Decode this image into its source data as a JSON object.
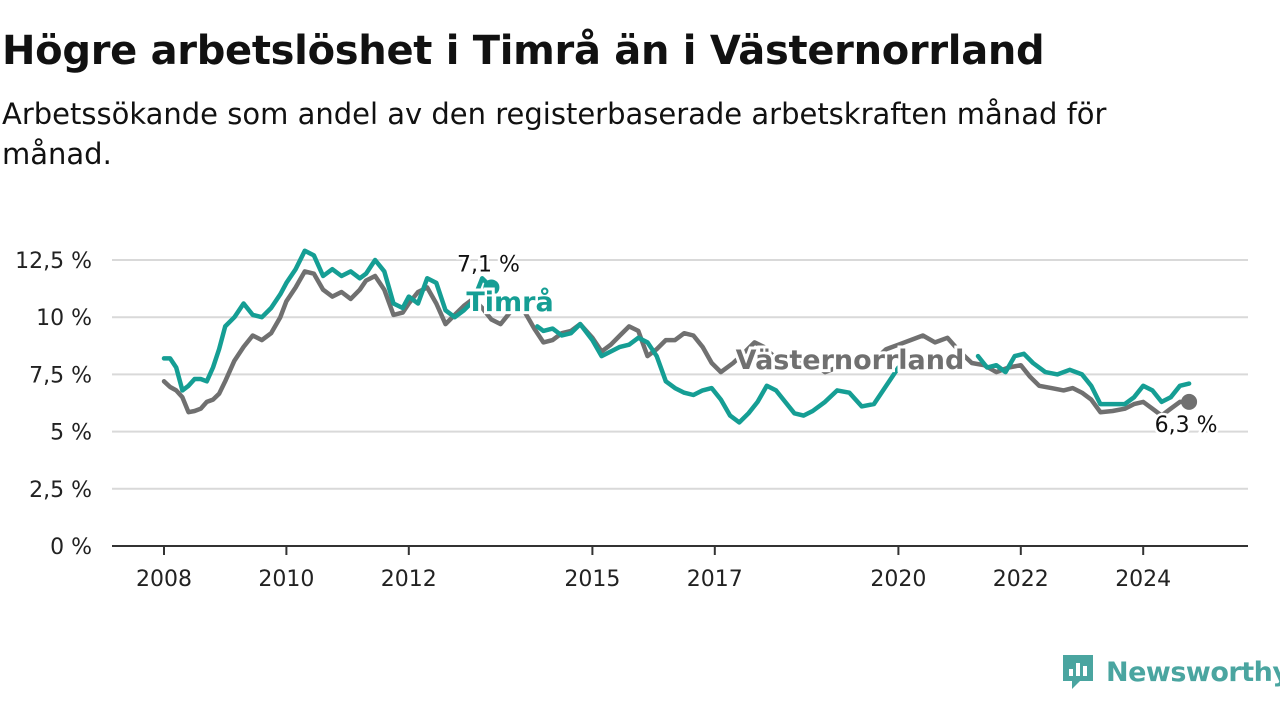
{
  "title": "Högre arbetslöshet i Timrå än i Västernorrland",
  "subtitle": "Arbetssökande som andel av den registerbaserade arbetskraften månad för månad.",
  "brand": {
    "name": "Newsworthy",
    "icon": "newsworthy-logo-icon",
    "color": "#4aa5a0"
  },
  "chart_data": {
    "type": "line",
    "title": "Högre arbetslöshet i Timrå än i Västernorrland",
    "subtitle": "Arbetssökande som andel av den registerbaserade arbetskraften månad för månad.",
    "xlabel": "",
    "ylabel": "",
    "x_range": [
      2008,
      2025.1
    ],
    "ylim": [
      0,
      12.5
    ],
    "y_ticks": [
      0,
      2.5,
      5,
      7.5,
      10,
      12.5
    ],
    "y_tick_labels": [
      "0 %",
      "2,5 %",
      "5 %",
      "7,5 %",
      "10 %",
      "12,5 %"
    ],
    "x_ticks": [
      2008,
      2010,
      2012,
      2015,
      2017,
      2020,
      2022,
      2024
    ],
    "x_tick_labels": [
      "2008",
      "2010",
      "2012",
      "2015",
      "2017",
      "2020",
      "2022",
      "2024"
    ],
    "grid": true,
    "series": [
      {
        "name": "Västernorrland",
        "color": "#707070",
        "end_label": "6,3 %",
        "points": [
          [
            2008.0,
            7.2
          ],
          [
            2008.1,
            6.95
          ],
          [
            2008.2,
            6.8
          ],
          [
            2008.3,
            6.5
          ],
          [
            2008.4,
            5.85
          ],
          [
            2008.5,
            5.9
          ],
          [
            2008.6,
            6.0
          ],
          [
            2008.7,
            6.3
          ],
          [
            2008.8,
            6.4
          ],
          [
            2008.9,
            6.65
          ],
          [
            2009.0,
            7.2
          ],
          [
            2009.15,
            8.1
          ],
          [
            2009.3,
            8.7
          ],
          [
            2009.45,
            9.2
          ],
          [
            2009.6,
            9.0
          ],
          [
            2009.75,
            9.3
          ],
          [
            2009.9,
            10.0
          ],
          [
            2010.0,
            10.7
          ],
          [
            2010.15,
            11.3
          ],
          [
            2010.3,
            12.0
          ],
          [
            2010.45,
            11.9
          ],
          [
            2010.6,
            11.2
          ],
          [
            2010.75,
            10.9
          ],
          [
            2010.9,
            11.1
          ],
          [
            2011.05,
            10.8
          ],
          [
            2011.2,
            11.2
          ],
          [
            2011.3,
            11.6
          ],
          [
            2011.45,
            11.8
          ],
          [
            2011.6,
            11.2
          ],
          [
            2011.75,
            10.1
          ],
          [
            2011.9,
            10.2
          ],
          [
            2012.0,
            10.6
          ],
          [
            2012.15,
            11.1
          ],
          [
            2012.3,
            11.3
          ],
          [
            2012.45,
            10.6
          ],
          [
            2012.6,
            9.7
          ],
          [
            2012.75,
            10.1
          ],
          [
            2012.9,
            10.5
          ],
          [
            2013.05,
            10.8
          ],
          [
            2013.2,
            10.4
          ],
          [
            2013.35,
            9.9
          ],
          [
            2013.5,
            9.7
          ],
          [
            2013.65,
            10.2
          ],
          [
            2013.8,
            10.5
          ],
          [
            2013.9,
            10.2
          ],
          [
            2014.05,
            9.5
          ],
          [
            2014.2,
            8.9
          ],
          [
            2014.35,
            9.0
          ],
          [
            2014.5,
            9.3
          ],
          [
            2014.65,
            9.4
          ],
          [
            2014.8,
            9.7
          ],
          [
            2015.0,
            9.1
          ],
          [
            2015.15,
            8.5
          ],
          [
            2015.3,
            8.8
          ],
          [
            2015.45,
            9.2
          ],
          [
            2015.6,
            9.6
          ],
          [
            2015.75,
            9.4
          ],
          [
            2015.9,
            8.3
          ],
          [
            2016.05,
            8.6
          ],
          [
            2016.2,
            9.0
          ],
          [
            2016.35,
            9.0
          ],
          [
            2016.5,
            9.3
          ],
          [
            2016.65,
            9.2
          ],
          [
            2016.8,
            8.7
          ],
          [
            2016.95,
            8.0
          ],
          [
            2017.1,
            7.6
          ],
          [
            2017.3,
            8.0
          ],
          [
            2017.5,
            8.5
          ],
          [
            2017.65,
            8.9
          ],
          [
            2017.8,
            8.7
          ],
          [
            2018.0,
            8.2
          ],
          [
            2018.2,
            7.9
          ],
          [
            2018.4,
            8.1
          ],
          [
            2018.6,
            8.0
          ],
          [
            2018.8,
            7.6
          ],
          [
            2019.0,
            7.8
          ],
          [
            2019.2,
            8.0
          ],
          [
            2019.4,
            7.7
          ],
          [
            2019.6,
            8.1
          ],
          [
            2019.8,
            8.6
          ],
          [
            2020.0,
            8.8
          ],
          [
            2020.2,
            9.0
          ],
          [
            2020.4,
            9.2
          ],
          [
            2020.6,
            8.9
          ],
          [
            2020.8,
            9.1
          ],
          [
            2021.0,
            8.5
          ],
          [
            2021.2,
            8.0
          ],
          [
            2021.4,
            7.9
          ],
          [
            2021.6,
            7.6
          ],
          [
            2021.8,
            7.8
          ],
          [
            2022.0,
            7.9
          ],
          [
            2022.15,
            7.4
          ],
          [
            2022.3,
            7.0
          ],
          [
            2022.5,
            6.9
          ],
          [
            2022.7,
            6.8
          ],
          [
            2022.85,
            6.9
          ],
          [
            2023.0,
            6.7
          ],
          [
            2023.15,
            6.4
          ],
          [
            2023.3,
            5.85
          ],
          [
            2023.5,
            5.9
          ],
          [
            2023.7,
            6.0
          ],
          [
            2023.85,
            6.2
          ],
          [
            2024.0,
            6.3
          ],
          [
            2024.15,
            6.0
          ],
          [
            2024.3,
            5.7
          ],
          [
            2024.45,
            6.0
          ],
          [
            2024.6,
            6.3
          ],
          [
            2024.75,
            6.3
          ]
        ]
      },
      {
        "name": "Timrå",
        "color": "#159e94",
        "end_label": "7,1 %",
        "points": [
          [
            2008.0,
            8.2
          ],
          [
            2008.1,
            8.2
          ],
          [
            2008.2,
            7.8
          ],
          [
            2008.3,
            6.8
          ],
          [
            2008.4,
            7.0
          ],
          [
            2008.5,
            7.3
          ],
          [
            2008.6,
            7.3
          ],
          [
            2008.7,
            7.2
          ],
          [
            2008.8,
            7.8
          ],
          [
            2008.9,
            8.6
          ],
          [
            2009.0,
            9.6
          ],
          [
            2009.15,
            10.0
          ],
          [
            2009.3,
            10.6
          ],
          [
            2009.45,
            10.1
          ],
          [
            2009.6,
            10.0
          ],
          [
            2009.75,
            10.4
          ],
          [
            2009.9,
            11.0
          ],
          [
            2010.0,
            11.5
          ],
          [
            2010.15,
            12.1
          ],
          [
            2010.3,
            12.9
          ],
          [
            2010.45,
            12.7
          ],
          [
            2010.6,
            11.8
          ],
          [
            2010.75,
            12.1
          ],
          [
            2010.9,
            11.8
          ],
          [
            2011.05,
            12.0
          ],
          [
            2011.2,
            11.7
          ],
          [
            2011.3,
            11.9
          ],
          [
            2011.45,
            12.5
          ],
          [
            2011.6,
            12.0
          ],
          [
            2011.75,
            10.6
          ],
          [
            2011.9,
            10.4
          ],
          [
            2012.0,
            10.9
          ],
          [
            2012.15,
            10.6
          ],
          [
            2012.3,
            11.7
          ],
          [
            2012.45,
            11.5
          ],
          [
            2012.6,
            10.3
          ],
          [
            2012.75,
            10.0
          ],
          [
            2012.9,
            10.3
          ],
          [
            2013.05,
            10.7
          ],
          [
            2013.2,
            11.7
          ],
          [
            2013.35,
            11.3
          ]
        ]
      },
      {
        "name": "",
        "color": "#159e94",
        "points": [
          [
            2014.1,
            9.6
          ],
          [
            2014.2,
            9.4
          ],
          [
            2014.35,
            9.5
          ],
          [
            2014.5,
            9.2
          ],
          [
            2014.65,
            9.3
          ],
          [
            2014.8,
            9.7
          ],
          [
            2015.0,
            9.0
          ],
          [
            2015.15,
            8.3
          ],
          [
            2015.3,
            8.5
          ],
          [
            2015.45,
            8.7
          ],
          [
            2015.6,
            8.8
          ],
          [
            2015.75,
            9.1
          ],
          [
            2015.9,
            8.9
          ],
          [
            2016.05,
            8.3
          ],
          [
            2016.2,
            7.2
          ],
          [
            2016.35,
            6.9
          ],
          [
            2016.5,
            6.7
          ],
          [
            2016.65,
            6.6
          ],
          [
            2016.8,
            6.8
          ],
          [
            2016.95,
            6.9
          ],
          [
            2017.1,
            6.4
          ],
          [
            2017.25,
            5.7
          ],
          [
            2017.4,
            5.4
          ],
          [
            2017.55,
            5.8
          ],
          [
            2017.7,
            6.3
          ],
          [
            2017.85,
            7.0
          ],
          [
            2018.0,
            6.8
          ],
          [
            2018.15,
            6.3
          ],
          [
            2018.3,
            5.8
          ],
          [
            2018.45,
            5.7
          ],
          [
            2018.6,
            5.9
          ],
          [
            2018.8,
            6.3
          ],
          [
            2019.0,
            6.8
          ],
          [
            2019.2,
            6.7
          ],
          [
            2019.4,
            6.1
          ],
          [
            2019.6,
            6.2
          ],
          [
            2019.8,
            7.0
          ],
          [
            2020.0,
            7.8
          ]
        ]
      },
      {
        "name": "",
        "color": "#159e94",
        "points": [
          [
            2021.3,
            8.3
          ],
          [
            2021.45,
            7.8
          ],
          [
            2021.6,
            7.9
          ],
          [
            2021.75,
            7.6
          ],
          [
            2021.9,
            8.3
          ],
          [
            2022.05,
            8.4
          ],
          [
            2022.2,
            8.0
          ],
          [
            2022.4,
            7.6
          ],
          [
            2022.6,
            7.5
          ],
          [
            2022.8,
            7.7
          ],
          [
            2023.0,
            7.5
          ],
          [
            2023.15,
            7.0
          ],
          [
            2023.3,
            6.2
          ],
          [
            2023.5,
            6.2
          ],
          [
            2023.7,
            6.2
          ],
          [
            2023.85,
            6.5
          ],
          [
            2024.0,
            7.0
          ],
          [
            2024.15,
            6.8
          ],
          [
            2024.3,
            6.3
          ],
          [
            2024.45,
            6.5
          ],
          [
            2024.6,
            7.0
          ],
          [
            2024.75,
            7.1
          ]
        ]
      }
    ],
    "annotations": [
      "Timrå",
      "Västernorrland"
    ]
  }
}
